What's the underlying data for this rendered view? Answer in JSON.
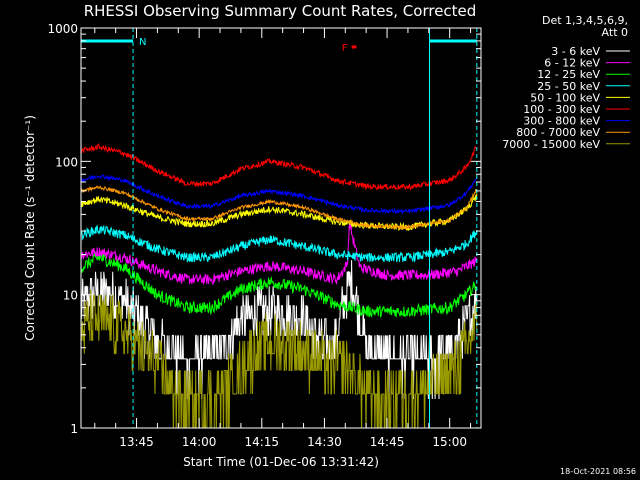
{
  "chart_data": {
    "type": "line",
    "title": "RHESSI Observing Summary Count Rates, Corrected",
    "xlabel": "Start Time (01-Dec-06 13:31:42)",
    "ylabel": "Corrected Count Rate (s⁻¹ detector⁻¹)",
    "y_scale": "log",
    "ylim": [
      1,
      1000
    ],
    "y_ticks": [
      {
        "v": 1,
        "label": "1"
      },
      {
        "v": 10,
        "label": "10"
      },
      {
        "v": 100,
        "label": "100"
      },
      {
        "v": 1000,
        "label": "1000"
      }
    ],
    "xlim": [
      "13:31:42",
      "15:07:30"
    ],
    "x_ticks": [
      {
        "t": "13:45",
        "label": "13:45"
      },
      {
        "t": "14:00",
        "label": "14:00"
      },
      {
        "t": "14:15",
        "label": "14:15"
      },
      {
        "t": "14:30",
        "label": "14:30"
      },
      {
        "t": "14:45",
        "label": "14:45"
      },
      {
        "t": "15:00",
        "label": "15:00"
      }
    ],
    "legend": {
      "placement": "outside-right",
      "header": [
        "Det 1,3,4,5,6,9,",
        "Att 0"
      ]
    },
    "annotations": [
      {
        "label": "N",
        "start": "13:31:42",
        "end": "13:44:10",
        "color": "#00ffff"
      },
      {
        "label": "",
        "start": "14:55:10",
        "end": "15:06:30",
        "color": "#00ffff"
      },
      {
        "label": "F",
        "start": "14:36:30",
        "end": "14:37:40",
        "color": "#ff0000"
      }
    ],
    "markers": [
      {
        "t": "13:31:42",
        "style": "solid",
        "color": "#00ffff"
      },
      {
        "t": "13:44:10",
        "style": "dashed",
        "color": "#00ffff"
      },
      {
        "t": "14:55:10",
        "style": "solid",
        "color": "#00ffff"
      },
      {
        "t": "15:06:30",
        "style": "dashed",
        "color": "#00ffff"
      }
    ],
    "series": [
      {
        "name": "3 - 6 keV",
        "color": "#ffffff",
        "noise": 0.35,
        "floor": 3.3,
        "points": [
          [
            "13:31:42",
            8
          ],
          [
            "13:34:00",
            10
          ],
          [
            "13:38:00",
            10.5
          ],
          [
            "13:42:00",
            9
          ],
          [
            "13:46:00",
            6.5
          ],
          [
            "13:50:00",
            4.5
          ],
          [
            "13:55:00",
            3.3
          ],
          [
            "14:00:00",
            3.3
          ],
          [
            "14:05:00",
            3.8
          ],
          [
            "14:10:00",
            6.5
          ],
          [
            "14:15:00",
            7.5
          ],
          [
            "14:20:00",
            7.5
          ],
          [
            "14:25:00",
            6.5
          ],
          [
            "14:29:00",
            4.5
          ],
          [
            "14:31:00",
            4
          ],
          [
            "14:33:00",
            5
          ],
          [
            "14:35:00",
            10
          ],
          [
            "14:36:30",
            13
          ],
          [
            "14:38:00",
            8
          ],
          [
            "14:40:00",
            4
          ],
          [
            "14:45:00",
            3.3
          ],
          [
            "14:50:00",
            3.3
          ],
          [
            "14:55:00",
            3.3
          ],
          [
            "15:00:00",
            3.8
          ],
          [
            "15:04:00",
            6
          ],
          [
            "15:06:30",
            9
          ]
        ]
      },
      {
        "name": "6 - 12 keV",
        "color": "#ff00ff",
        "noise": 0.08,
        "points": [
          [
            "13:31:42",
            20
          ],
          [
            "13:36:00",
            21
          ],
          [
            "13:42:00",
            19
          ],
          [
            "13:50:00",
            15
          ],
          [
            "13:57:00",
            13
          ],
          [
            "14:03:00",
            13
          ],
          [
            "14:10:00",
            15
          ],
          [
            "14:17:00",
            16.5
          ],
          [
            "14:25:00",
            15
          ],
          [
            "14:33:00",
            13
          ],
          [
            "14:35:30",
            17
          ],
          [
            "14:36:00",
            35
          ],
          [
            "14:37:00",
            25
          ],
          [
            "14:38:30",
            16
          ],
          [
            "14:45:00",
            14
          ],
          [
            "14:55:00",
            14
          ],
          [
            "15:02:00",
            15
          ],
          [
            "15:06:30",
            18
          ]
        ]
      },
      {
        "name": "12 - 25 keV",
        "color": "#00ff00",
        "noise": 0.09,
        "points": [
          [
            "13:31:42",
            16
          ],
          [
            "13:36:00",
            19
          ],
          [
            "13:42:00",
            16
          ],
          [
            "13:50:00",
            10
          ],
          [
            "13:57:00",
            8
          ],
          [
            "14:03:00",
            8
          ],
          [
            "14:10:00",
            11
          ],
          [
            "14:17:00",
            12.5
          ],
          [
            "14:25:00",
            11
          ],
          [
            "14:33:00",
            8.5
          ],
          [
            "14:40:00",
            7.5
          ],
          [
            "14:50:00",
            7.5
          ],
          [
            "15:00:00",
            8
          ],
          [
            "15:04:00",
            10
          ],
          [
            "15:06:30",
            12
          ]
        ]
      },
      {
        "name": "25 - 50 keV",
        "color": "#00ffff",
        "noise": 0.07,
        "points": [
          [
            "13:31:42",
            28
          ],
          [
            "13:36:00",
            31
          ],
          [
            "13:42:00",
            28
          ],
          [
            "13:50:00",
            22
          ],
          [
            "13:57:00",
            19
          ],
          [
            "14:03:00",
            19
          ],
          [
            "14:10:00",
            23
          ],
          [
            "14:17:00",
            26
          ],
          [
            "14:25:00",
            23
          ],
          [
            "14:33:00",
            20
          ],
          [
            "14:40:00",
            19
          ],
          [
            "14:50:00",
            19
          ],
          [
            "15:00:00",
            21
          ],
          [
            "15:04:00",
            24
          ],
          [
            "15:06:30",
            30
          ]
        ]
      },
      {
        "name": "50 - 100 keV",
        "color": "#ffff00",
        "noise": 0.05,
        "points": [
          [
            "13:31:42",
            48
          ],
          [
            "13:36:00",
            52
          ],
          [
            "13:42:00",
            47
          ],
          [
            "13:50:00",
            38
          ],
          [
            "13:57:00",
            34
          ],
          [
            "14:03:00",
            34
          ],
          [
            "14:10:00",
            40
          ],
          [
            "14:17:00",
            44
          ],
          [
            "14:25:00",
            40
          ],
          [
            "14:33:00",
            35
          ],
          [
            "14:40:00",
            33
          ],
          [
            "14:50:00",
            32
          ],
          [
            "15:00:00",
            36
          ],
          [
            "15:04:00",
            44
          ],
          [
            "15:06:30",
            55
          ]
        ]
      },
      {
        "name": "100 - 300 keV",
        "color": "#ff0000",
        "noise": 0.04,
        "points": [
          [
            "13:31:42",
            120
          ],
          [
            "13:36:00",
            128
          ],
          [
            "13:42:00",
            115
          ],
          [
            "13:50:00",
            85
          ],
          [
            "13:57:00",
            68
          ],
          [
            "14:03:00",
            68
          ],
          [
            "14:10:00",
            88
          ],
          [
            "14:17:00",
            100
          ],
          [
            "14:25:00",
            90
          ],
          [
            "14:33:00",
            72
          ],
          [
            "14:40:00",
            65
          ],
          [
            "14:50:00",
            64
          ],
          [
            "15:00:00",
            72
          ],
          [
            "15:04:00",
            90
          ],
          [
            "15:06:30",
            130
          ]
        ]
      },
      {
        "name": "300 - 800 keV",
        "color": "#0000ff",
        "noise": 0.03,
        "points": [
          [
            "13:31:42",
            72
          ],
          [
            "13:36:00",
            78
          ],
          [
            "13:42:00",
            72
          ],
          [
            "13:50:00",
            55
          ],
          [
            "13:57:00",
            46
          ],
          [
            "14:03:00",
            46
          ],
          [
            "14:10:00",
            55
          ],
          [
            "14:17:00",
            60
          ],
          [
            "14:25:00",
            55
          ],
          [
            "14:33:00",
            47
          ],
          [
            "14:40:00",
            43
          ],
          [
            "14:50:00",
            42
          ],
          [
            "15:00:00",
            47
          ],
          [
            "15:04:00",
            58
          ],
          [
            "15:06:30",
            75
          ]
        ]
      },
      {
        "name": "800 - 7000 keV",
        "color": "#ff9900",
        "noise": 0.025,
        "points": [
          [
            "13:31:42",
            60
          ],
          [
            "13:36:00",
            64
          ],
          [
            "13:42:00",
            58
          ],
          [
            "13:50:00",
            44
          ],
          [
            "13:57:00",
            37
          ],
          [
            "14:03:00",
            37
          ],
          [
            "14:10:00",
            45
          ],
          [
            "14:17:00",
            50
          ],
          [
            "14:25:00",
            45
          ],
          [
            "14:33:00",
            37
          ],
          [
            "14:40:00",
            33
          ],
          [
            "14:50:00",
            32
          ],
          [
            "15:00:00",
            36
          ],
          [
            "15:04:00",
            45
          ],
          [
            "15:06:30",
            62
          ]
        ]
      },
      {
        "name": "7000 - 15000 keV",
        "color": "#999900",
        "noise": 0.45,
        "floor": 1.8,
        "points": [
          [
            "13:31:42",
            5.5
          ],
          [
            "13:34:00",
            6.5
          ],
          [
            "13:40:00",
            6
          ],
          [
            "13:44:00",
            4.5
          ],
          [
            "13:50:00",
            3
          ],
          [
            "13:55:00",
            1.7
          ],
          [
            "14:03:00",
            1.6
          ],
          [
            "14:08:00",
            2.2
          ],
          [
            "14:12:00",
            3.5
          ],
          [
            "14:18:00",
            4.5
          ],
          [
            "14:24:00",
            4
          ],
          [
            "14:30:00",
            3
          ],
          [
            "14:35:00",
            3
          ],
          [
            "14:40:00",
            1.8
          ],
          [
            "14:45:00",
            1.6
          ],
          [
            "14:50:00",
            1.8
          ],
          [
            "14:55:00",
            2
          ],
          [
            "15:00:00",
            2.5
          ],
          [
            "15:04:00",
            4
          ],
          [
            "15:06:30",
            6
          ]
        ]
      }
    ]
  },
  "footer": {
    "timestamp": "18-Oct-2021 08:56"
  }
}
